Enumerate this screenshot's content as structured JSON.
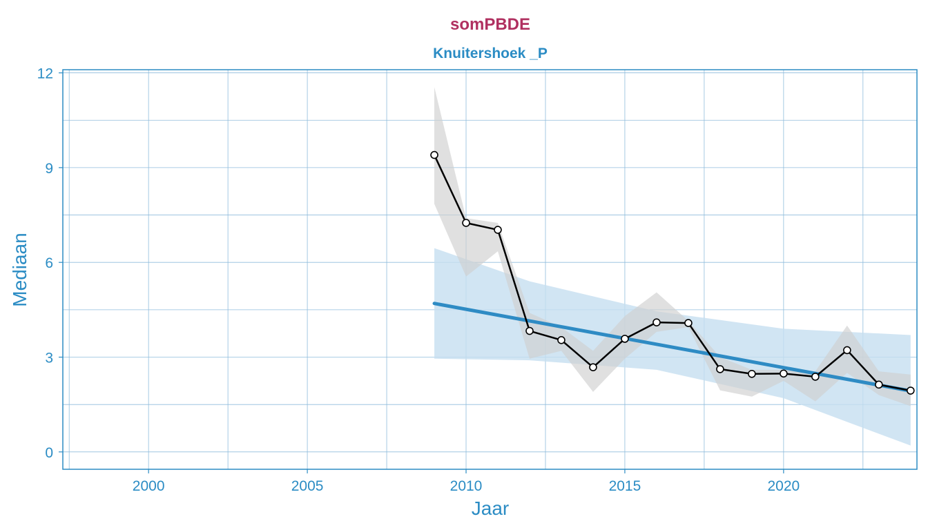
{
  "chart_data": {
    "type": "line",
    "title": "somPBDE",
    "subtitle": "Knuitershoek _P",
    "xlabel": "Jaar",
    "ylabel": "Mediaan",
    "xlim": [
      1997.3,
      2024.2
    ],
    "ylim": [
      -0.55,
      12.1
    ],
    "x_ticks": [
      2000,
      2005,
      2010,
      2015,
      2020
    ],
    "x_tick_labels": [
      "2000",
      "2005",
      "2010",
      "2015",
      "2020"
    ],
    "y_ticks": [
      0,
      3,
      6,
      9,
      12
    ],
    "y_tick_labels": [
      "0",
      "3",
      "6",
      "9",
      "12"
    ],
    "x_minor_ticks": [
      1997.5,
      2002.5,
      2007.5,
      2012.5,
      2017.5,
      2022.5
    ],
    "y_minor_ticks": [
      1.5,
      4.5,
      7.5,
      10.5
    ],
    "grid": true,
    "series": [
      {
        "name": "Mediaan",
        "x": [
          2009,
          2010,
          2011,
          2012,
          2013,
          2014,
          2015,
          2016,
          2017,
          2018,
          2019,
          2020,
          2021,
          2022,
          2023,
          2024
        ],
        "values": [
          9.4,
          7.25,
          7.03,
          3.83,
          3.54,
          2.68,
          3.58,
          4.1,
          4.08,
          2.62,
          2.47,
          2.48,
          2.38,
          3.22,
          2.13,
          1.94
        ],
        "band_upper": [
          11.55,
          7.4,
          7.25,
          4.4,
          3.95,
          3.2,
          4.3,
          5.05,
          4.15,
          3.0,
          2.6,
          2.6,
          2.55,
          4.0,
          2.55,
          2.45
        ],
        "band_lower": [
          7.85,
          5.55,
          6.35,
          2.95,
          3.2,
          1.9,
          2.95,
          3.8,
          3.95,
          1.95,
          1.75,
          2.25,
          1.6,
          2.5,
          1.8,
          1.45
        ]
      }
    ],
    "trend": {
      "name": "Trend",
      "x": [
        2009,
        2024
      ],
      "values": [
        4.7,
        1.93
      ],
      "ci_x": [
        2009,
        2012,
        2016,
        2020,
        2024
      ],
      "ci_upper": [
        6.45,
        5.4,
        4.45,
        3.9,
        3.7
      ],
      "ci_lower": [
        2.95,
        2.9,
        2.6,
        1.7,
        0.2
      ]
    },
    "colors": {
      "title": "#b03060",
      "accent": "#2b8cc4",
      "line": "#000000",
      "band": "#d0d0d0",
      "trend": "#2e8bc4",
      "trend_band": "#c6dff0",
      "grid": "#8fbcdc"
    }
  }
}
